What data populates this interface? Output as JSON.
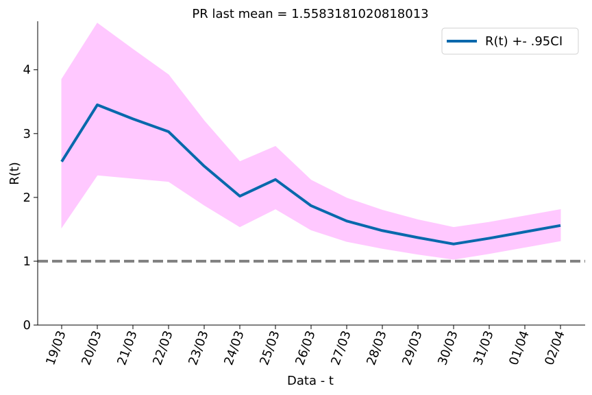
{
  "chart_data": {
    "type": "line",
    "title": "PR last mean = 1.5583181020818013",
    "xlabel": "Data - t",
    "ylabel": "R(t)",
    "categories": [
      "19/03",
      "20/03",
      "21/03",
      "22/03",
      "23/03",
      "24/03",
      "25/03",
      "26/03",
      "27/03",
      "28/03",
      "29/03",
      "30/03",
      "31/03",
      "01/04",
      "02/04"
    ],
    "series": [
      {
        "name": "R(t) +- .95CI",
        "values": [
          2.56,
          3.45,
          3.23,
          3.03,
          2.49,
          2.02,
          2.28,
          1.87,
          1.63,
          1.48,
          1.37,
          1.27,
          1.36,
          1.46,
          1.56
        ],
        "lower": [
          1.53,
          2.35,
          2.3,
          2.25,
          1.88,
          1.54,
          1.82,
          1.49,
          1.31,
          1.2,
          1.11,
          1.03,
          1.12,
          1.22,
          1.32
        ],
        "upper": [
          3.85,
          4.73,
          4.32,
          3.92,
          3.2,
          2.56,
          2.8,
          2.27,
          1.99,
          1.8,
          1.65,
          1.53,
          1.61,
          1.71,
          1.81
        ],
        "color": "#0868ac",
        "band_color": "#ffc8ff"
      }
    ],
    "reference_line": {
      "y": 1,
      "style": "dashed",
      "color": "#808080"
    },
    "yticks": [
      "0",
      "1",
      "2",
      "3",
      "4"
    ],
    "ylim": [
      0,
      4.76
    ],
    "legend": "top-right",
    "grid": false
  }
}
